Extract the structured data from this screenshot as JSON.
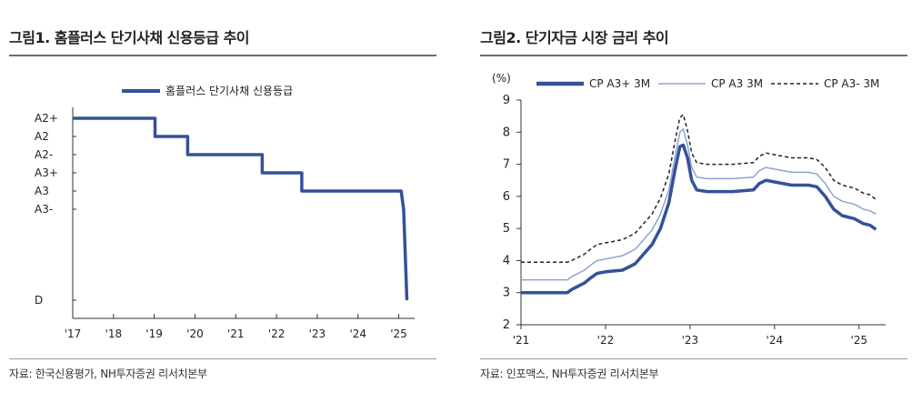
{
  "panel1": {
    "title": "그림1. 홈플러스 단기사채 신용등급 추이",
    "source": "자료: 한국신용평가, NH투자증권 리서치본부"
  },
  "panel2": {
    "title": "그림2. 단기자금 시장 금리 추이",
    "source": "자료: 인포맥스, NH투자증권 리서치본부"
  },
  "colors": {
    "navy": "#33529a",
    "light": "#8da4cf",
    "dash": "#222222",
    "axis": "#333333"
  },
  "chart_data": [
    {
      "type": "line",
      "title": "그림1. 홈플러스 단기사채 신용등급 추이",
      "legend": [
        "홈플러스 단기사채 신용등급"
      ],
      "x_tick_labels": [
        "'17",
        "'18",
        "'19",
        "'20",
        "'21",
        "'22",
        "'23",
        "'24",
        "'25"
      ],
      "x_range": [
        2017.0,
        2025.3
      ],
      "y_categories": [
        "D",
        "A3-",
        "A3",
        "A3+",
        "A2-",
        "A2",
        "A2+"
      ],
      "y_category_values": [
        0,
        5,
        6,
        7,
        8,
        9,
        10
      ],
      "y_range": [
        0,
        10
      ],
      "series": [
        {
          "name": "홈플러스 단기사채 신용등급",
          "points": [
            [
              2017.0,
              10
            ],
            [
              2019.02,
              10
            ],
            [
              2019.02,
              9
            ],
            [
              2019.82,
              9
            ],
            [
              2019.82,
              8
            ],
            [
              2021.65,
              8
            ],
            [
              2021.65,
              7
            ],
            [
              2022.62,
              7
            ],
            [
              2022.62,
              6
            ],
            [
              2025.06,
              6
            ],
            [
              2025.12,
              5
            ],
            [
              2025.2,
              0
            ]
          ]
        }
      ]
    },
    {
      "type": "line",
      "title": "그림2. 단기자금 시장 금리 추이",
      "ylabel": "(%)",
      "x_tick_labels": [
        "'21",
        "'22",
        "'23",
        "'24",
        "'25"
      ],
      "x_range": [
        2021.0,
        2025.25
      ],
      "y_range": [
        2,
        9
      ],
      "y_ticks": [
        2,
        3,
        4,
        5,
        6,
        7,
        8,
        9
      ],
      "legend": [
        "CP A3+ 3M",
        "CP A3 3M",
        "CP A3- 3M"
      ],
      "series": [
        {
          "name": "CP A3+ 3M",
          "points": [
            [
              2021.0,
              3.0
            ],
            [
              2021.55,
              3.0
            ],
            [
              2021.6,
              3.1
            ],
            [
              2021.75,
              3.3
            ],
            [
              2021.82,
              3.45
            ],
            [
              2021.9,
              3.6
            ],
            [
              2022.0,
              3.65
            ],
            [
              2022.2,
              3.7
            ],
            [
              2022.35,
              3.9
            ],
            [
              2022.45,
              4.2
            ],
            [
              2022.55,
              4.5
            ],
            [
              2022.65,
              5.0
            ],
            [
              2022.75,
              5.8
            ],
            [
              2022.82,
              6.8
            ],
            [
              2022.88,
              7.55
            ],
            [
              2022.92,
              7.6
            ],
            [
              2022.97,
              7.2
            ],
            [
              2023.02,
              6.5
            ],
            [
              2023.08,
              6.2
            ],
            [
              2023.2,
              6.15
            ],
            [
              2023.5,
              6.15
            ],
            [
              2023.75,
              6.2
            ],
            [
              2023.82,
              6.4
            ],
            [
              2023.9,
              6.5
            ],
            [
              2024.0,
              6.45
            ],
            [
              2024.2,
              6.35
            ],
            [
              2024.4,
              6.35
            ],
            [
              2024.5,
              6.3
            ],
            [
              2024.6,
              6.0
            ],
            [
              2024.7,
              5.6
            ],
            [
              2024.8,
              5.4
            ],
            [
              2024.95,
              5.3
            ],
            [
              2025.05,
              5.15
            ],
            [
              2025.13,
              5.1
            ],
            [
              2025.2,
              4.97
            ]
          ]
        },
        {
          "name": "CP A3 3M",
          "points": [
            [
              2021.0,
              3.4
            ],
            [
              2021.55,
              3.4
            ],
            [
              2021.6,
              3.5
            ],
            [
              2021.75,
              3.7
            ],
            [
              2021.82,
              3.85
            ],
            [
              2021.9,
              4.0
            ],
            [
              2022.0,
              4.05
            ],
            [
              2022.2,
              4.15
            ],
            [
              2022.35,
              4.35
            ],
            [
              2022.45,
              4.65
            ],
            [
              2022.55,
              4.95
            ],
            [
              2022.65,
              5.45
            ],
            [
              2022.75,
              6.2
            ],
            [
              2022.82,
              7.2
            ],
            [
              2022.88,
              8.0
            ],
            [
              2022.92,
              8.1
            ],
            [
              2022.97,
              7.6
            ],
            [
              2023.02,
              6.9
            ],
            [
              2023.08,
              6.6
            ],
            [
              2023.2,
              6.55
            ],
            [
              2023.5,
              6.55
            ],
            [
              2023.75,
              6.6
            ],
            [
              2023.82,
              6.8
            ],
            [
              2023.9,
              6.9
            ],
            [
              2024.0,
              6.85
            ],
            [
              2024.2,
              6.75
            ],
            [
              2024.4,
              6.75
            ],
            [
              2024.5,
              6.7
            ],
            [
              2024.6,
              6.4
            ],
            [
              2024.7,
              6.0
            ],
            [
              2024.8,
              5.85
            ],
            [
              2024.95,
              5.75
            ],
            [
              2025.05,
              5.6
            ],
            [
              2025.13,
              5.55
            ],
            [
              2025.2,
              5.45
            ]
          ]
        },
        {
          "name": "CP A3- 3M",
          "points": [
            [
              2021.0,
              3.95
            ],
            [
              2021.55,
              3.95
            ],
            [
              2021.6,
              4.0
            ],
            [
              2021.75,
              4.2
            ],
            [
              2021.82,
              4.35
            ],
            [
              2021.9,
              4.5
            ],
            [
              2022.0,
              4.55
            ],
            [
              2022.2,
              4.65
            ],
            [
              2022.35,
              4.85
            ],
            [
              2022.45,
              5.15
            ],
            [
              2022.55,
              5.45
            ],
            [
              2022.65,
              5.95
            ],
            [
              2022.75,
              6.7
            ],
            [
              2022.82,
              7.7
            ],
            [
              2022.88,
              8.45
            ],
            [
              2022.92,
              8.55
            ],
            [
              2022.97,
              8.05
            ],
            [
              2023.02,
              7.35
            ],
            [
              2023.08,
              7.05
            ],
            [
              2023.2,
              7.0
            ],
            [
              2023.5,
              7.0
            ],
            [
              2023.75,
              7.05
            ],
            [
              2023.82,
              7.25
            ],
            [
              2023.9,
              7.35
            ],
            [
              2024.0,
              7.3
            ],
            [
              2024.2,
              7.2
            ],
            [
              2024.4,
              7.2
            ],
            [
              2024.5,
              7.15
            ],
            [
              2024.6,
              6.9
            ],
            [
              2024.7,
              6.5
            ],
            [
              2024.8,
              6.35
            ],
            [
              2024.95,
              6.25
            ],
            [
              2025.05,
              6.1
            ],
            [
              2025.13,
              6.05
            ],
            [
              2025.2,
              5.9
            ]
          ]
        }
      ]
    }
  ]
}
